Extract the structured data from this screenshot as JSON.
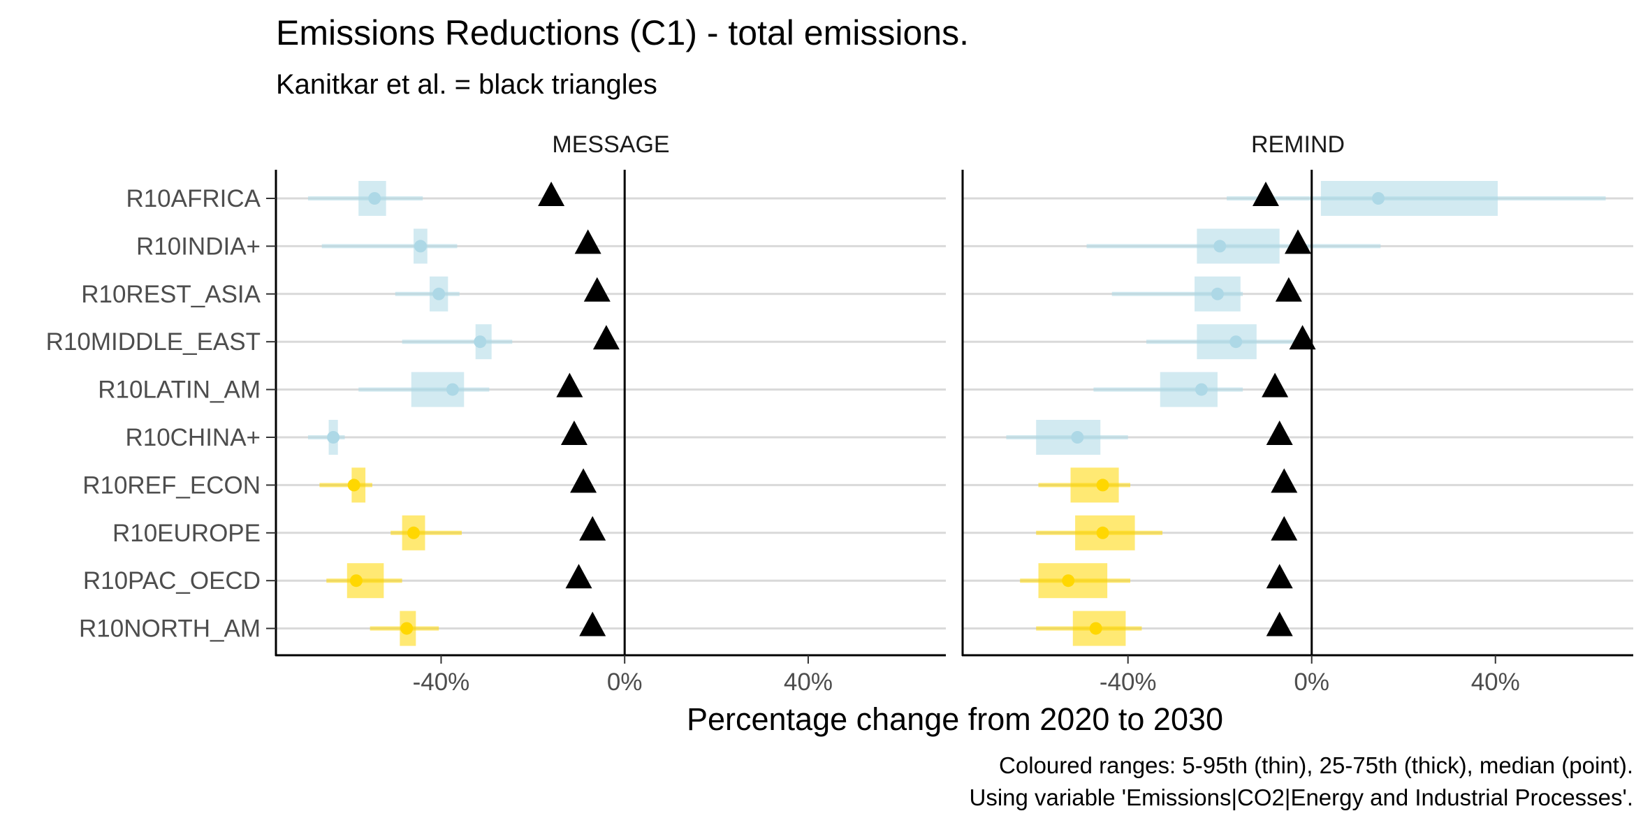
{
  "chart_data": {
    "type": "range-dot",
    "title": "Emissions Reductions (C1) - total emissions.",
    "subtitle": "Kanitkar et al. = black triangles",
    "xlabel": "Percentage change from 2020 to 2030",
    "x_ticks": [
      -40,
      0,
      40
    ],
    "x_tick_labels": [
      "-40%",
      "0%",
      "40%"
    ],
    "xlim": [
      -76,
      70
    ],
    "reference_line": 0,
    "caption_lines": [
      "Coloured ranges: 5-95th (thin), 25-75th (thick), median (point).",
      "Using variable 'Emissions|CO2|Energy and Industrial Processes'."
    ],
    "colors": {
      "blue": "#add8e6",
      "gold": "#ffd700",
      "triangle": "#000000",
      "gridline": "#d9d9d9"
    },
    "regions": [
      "R10AFRICA",
      "R10INDIA+",
      "R10REST_ASIA",
      "R10MIDDLE_EAST",
      "R10LATIN_AM",
      "R10CHINA+",
      "R10REF_ECON",
      "R10EUROPE",
      "R10PAC_OECD",
      "R10NORTH_AM"
    ],
    "region_colors": [
      "blue",
      "blue",
      "blue",
      "blue",
      "blue",
      "blue",
      "gold",
      "gold",
      "gold",
      "gold"
    ],
    "facets": [
      {
        "name": "MESSAGE",
        "series": [
          {
            "region": "R10AFRICA",
            "p5": -69,
            "p25": -58,
            "median": -54.5,
            "p75": -52,
            "p95": -44,
            "kanitkar": -16
          },
          {
            "region": "R10INDIA+",
            "p5": -66,
            "p25": -46,
            "median": -44.5,
            "p75": -43,
            "p95": -36.5,
            "kanitkar": -8
          },
          {
            "region": "R10REST_ASIA",
            "p5": -50,
            "p25": -42.5,
            "median": -40.5,
            "p75": -38.5,
            "p95": -36,
            "kanitkar": -6
          },
          {
            "region": "R10MIDDLE_EAST",
            "p5": -48.5,
            "p25": -32.5,
            "median": -31.5,
            "p75": -29,
            "p95": -24.5,
            "kanitkar": -4
          },
          {
            "region": "R10LATIN_AM",
            "p5": -58,
            "p25": -46.5,
            "median": -37.5,
            "p75": -35,
            "p95": -29.5,
            "kanitkar": -12
          },
          {
            "region": "R10CHINA+",
            "p5": -69,
            "p25": -64.5,
            "median": -63.5,
            "p75": -62.5,
            "p95": -61,
            "kanitkar": -11
          },
          {
            "region": "R10REF_ECON",
            "p5": -66.5,
            "p25": -59.5,
            "median": -59,
            "p75": -56.5,
            "p95": -55,
            "kanitkar": -9
          },
          {
            "region": "R10EUROPE",
            "p5": -51,
            "p25": -48.5,
            "median": -46,
            "p75": -43.5,
            "p95": -35.5,
            "kanitkar": -7
          },
          {
            "region": "R10PAC_OECD",
            "p5": -65,
            "p25": -60.5,
            "median": -58.5,
            "p75": -52.5,
            "p95": -48.5,
            "kanitkar": -10
          },
          {
            "region": "R10NORTH_AM",
            "p5": -55.5,
            "p25": -49,
            "median": -47.5,
            "p75": -45.5,
            "p95": -40.5,
            "kanitkar": -7
          }
        ]
      },
      {
        "name": "REMIND",
        "series": [
          {
            "region": "R10AFRICA",
            "p5": -18.5,
            "p25": 2,
            "median": 14.5,
            "p75": 40.5,
            "p95": 64,
            "kanitkar": -10
          },
          {
            "region": "R10INDIA+",
            "p5": -49,
            "p25": -25,
            "median": -20,
            "p75": -7,
            "p95": 15,
            "kanitkar": -3
          },
          {
            "region": "R10REST_ASIA",
            "p5": -43.5,
            "p25": -25.5,
            "median": -20.5,
            "p75": -15.5,
            "p95": -15,
            "kanitkar": -5
          },
          {
            "region": "R10MIDDLE_EAST",
            "p5": -36,
            "p25": -25,
            "median": -16.5,
            "p75": -12,
            "p95": -2,
            "kanitkar": -2
          },
          {
            "region": "R10LATIN_AM",
            "p5": -47.5,
            "p25": -33,
            "median": -24,
            "p75": -20.5,
            "p95": -15,
            "kanitkar": -8
          },
          {
            "region": "R10CHINA+",
            "p5": -66.5,
            "p25": -60,
            "median": -51,
            "p75": -46,
            "p95": -40,
            "kanitkar": -7
          },
          {
            "region": "R10REF_ECON",
            "p5": -59.5,
            "p25": -52.5,
            "median": -45.5,
            "p75": -42,
            "p95": -39.5,
            "kanitkar": -6
          },
          {
            "region": "R10EUROPE",
            "p5": -60,
            "p25": -51.5,
            "median": -45.5,
            "p75": -38.5,
            "p95": -32.5,
            "kanitkar": -6
          },
          {
            "region": "R10PAC_OECD",
            "p5": -63.5,
            "p25": -59.5,
            "median": -53,
            "p75": -44.5,
            "p95": -39.5,
            "kanitkar": -7
          },
          {
            "region": "R10NORTH_AM",
            "p5": -60,
            "p25": -52,
            "median": -47,
            "p75": -40.5,
            "p95": -37,
            "kanitkar": -7
          }
        ]
      }
    ]
  }
}
